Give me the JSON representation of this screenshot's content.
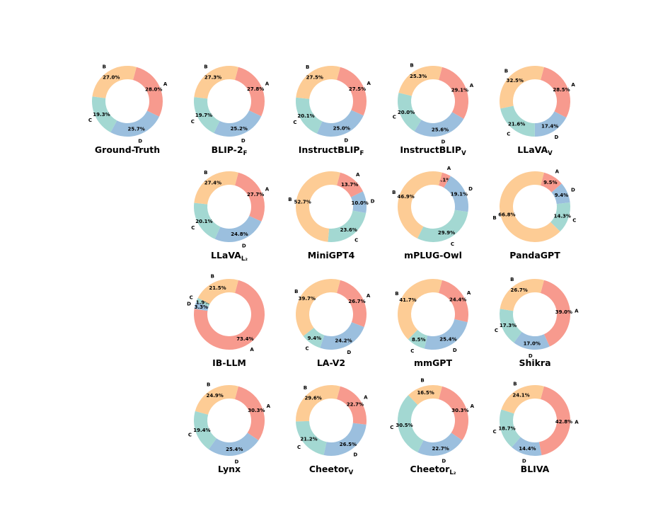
{
  "colors": {
    "A": "#f79a8e",
    "B": "#fdcc95",
    "C": "#a3d8d2",
    "D": "#9bbfde"
  },
  "chart_data": [
    {
      "type": "pie",
      "title": "Ground-Truth",
      "title_sub": "",
      "categories": [
        "A",
        "D",
        "C",
        "B"
      ],
      "values": [
        28.0,
        25.7,
        19.3,
        27.0
      ]
    },
    {
      "type": "pie",
      "title": "BLIP-2",
      "title_sub": "F",
      "categories": [
        "A",
        "D",
        "C",
        "B"
      ],
      "values": [
        27.8,
        25.2,
        19.7,
        27.3
      ]
    },
    {
      "type": "pie",
      "title": "InstructBLIP",
      "title_sub": "F",
      "categories": [
        "A",
        "D",
        "C",
        "B"
      ],
      "values": [
        27.5,
        25.0,
        20.1,
        27.5
      ]
    },
    {
      "type": "pie",
      "title": "InstructBLIP",
      "title_sub": "V",
      "categories": [
        "A",
        "D",
        "C",
        "B"
      ],
      "values": [
        29.1,
        25.6,
        20.0,
        25.3
      ]
    },
    {
      "type": "pie",
      "title": "LLaVA",
      "title_sub": "V",
      "categories": [
        "A",
        "D",
        "C",
        "B"
      ],
      "values": [
        28.5,
        17.4,
        21.6,
        32.5
      ]
    },
    {
      "type": "pie",
      "title": "LLaVA",
      "title_sub": "L₂",
      "categories": [
        "A",
        "D",
        "C",
        "B"
      ],
      "values": [
        27.7,
        24.8,
        20.1,
        27.4
      ]
    },
    {
      "type": "pie",
      "title": "MiniGPT4",
      "title_sub": "",
      "categories": [
        "A",
        "D",
        "C",
        "B"
      ],
      "values": [
        13.7,
        10.0,
        23.6,
        52.7
      ]
    },
    {
      "type": "pie",
      "title": "mPLUG-Owl",
      "title_sub": "",
      "categories": [
        "A",
        "D",
        "C",
        "B"
      ],
      "values": [
        4.1,
        19.1,
        29.9,
        46.9
      ]
    },
    {
      "type": "pie",
      "title": "PandaGPT",
      "title_sub": "",
      "categories": [
        "A",
        "D",
        "C",
        "B"
      ],
      "values": [
        9.5,
        9.4,
        14.3,
        66.8
      ]
    },
    {
      "type": "pie",
      "title": "IB-LLM",
      "title_sub": "",
      "categories": [
        "A",
        "D",
        "C",
        "B"
      ],
      "values": [
        73.4,
        3.3,
        1.9,
        21.5
      ]
    },
    {
      "type": "pie",
      "title": "LA-V2",
      "title_sub": "",
      "categories": [
        "A",
        "D",
        "C",
        "B"
      ],
      "values": [
        26.7,
        24.2,
        9.4,
        39.7
      ]
    },
    {
      "type": "pie",
      "title": "mmGPT",
      "title_sub": "",
      "categories": [
        "A",
        "D",
        "C",
        "B"
      ],
      "values": [
        24.4,
        25.4,
        8.5,
        41.7
      ]
    },
    {
      "type": "pie",
      "title": "Shikra",
      "title_sub": "",
      "categories": [
        "A",
        "D",
        "C",
        "B"
      ],
      "values": [
        39.0,
        17.0,
        17.3,
        26.7
      ]
    },
    {
      "type": "pie",
      "title": "Lynx",
      "title_sub": "",
      "categories": [
        "A",
        "D",
        "C",
        "B"
      ],
      "values": [
        30.3,
        25.4,
        19.4,
        24.9
      ]
    },
    {
      "type": "pie",
      "title": "Cheetor",
      "title_sub": "V",
      "categories": [
        "A",
        "D",
        "C",
        "B"
      ],
      "values": [
        22.7,
        26.5,
        21.2,
        29.6
      ]
    },
    {
      "type": "pie",
      "title": "Cheetor",
      "title_sub": "L₂",
      "categories": [
        "A",
        "D",
        "C",
        "B"
      ],
      "values": [
        30.3,
        22.7,
        30.5,
        16.5
      ]
    },
    {
      "type": "pie",
      "title": "BLIVA",
      "title_sub": "",
      "categories": [
        "A",
        "D",
        "C",
        "B"
      ],
      "values": [
        42.8,
        14.4,
        18.7,
        24.1
      ]
    }
  ]
}
